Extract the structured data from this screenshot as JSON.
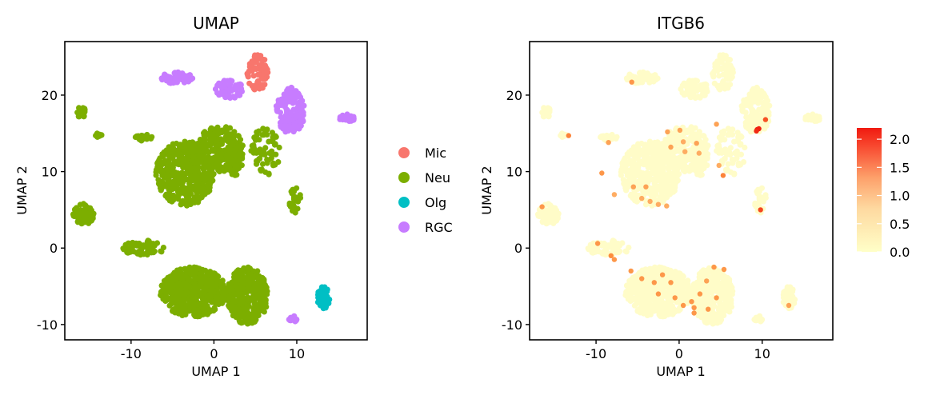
{
  "chart_data": [
    {
      "type": "scatter",
      "title": "UMAP",
      "xlabel": "UMAP 1",
      "ylabel": "UMAP 2",
      "xlim": [
        -18,
        18.5
      ],
      "ylim": [
        -12,
        27
      ],
      "xticks": [
        {
          "v": -10,
          "label": "-10"
        },
        {
          "v": 0,
          "label": "0"
        },
        {
          "v": 10,
          "label": "10"
        }
      ],
      "yticks": [
        {
          "v": -10,
          "label": "-10"
        },
        {
          "v": 0,
          "label": "0"
        },
        {
          "v": 10,
          "label": "10"
        },
        {
          "v": 20,
          "label": "20"
        }
      ],
      "legend": {
        "placement": "right",
        "entries": [
          {
            "label": "Mic",
            "color": "#F8766D"
          },
          {
            "label": "Neu",
            "color": "#7CAE00"
          },
          {
            "label": "Olg",
            "color": "#00BFC4"
          },
          {
            "label": "RGC",
            "color": "#C77CFF"
          }
        ]
      },
      "clusters": [
        {
          "group": "Neu",
          "label": "Neu upper-left mass",
          "x": [
            -7,
            0
          ],
          "y": [
            5.5,
            14
          ],
          "n": 420
        },
        {
          "group": "Neu",
          "label": "Neu upper-center mass",
          "x": [
            -2,
            3.5
          ],
          "y": [
            10,
            16
          ],
          "n": 220
        },
        {
          "group": "Neu",
          "label": "Neu upper-right lobe",
          "x": [
            1.5,
            3.5
          ],
          "y": [
            9.5,
            14
          ],
          "n": 80
        },
        {
          "group": "Neu",
          "label": "Neu lower-left mass",
          "x": [
            -6.5,
            1.5
          ],
          "y": [
            -9,
            -2.5
          ],
          "n": 430
        },
        {
          "group": "Neu",
          "label": "Neu lower-right mass",
          "x": [
            1.5,
            6.5
          ],
          "y": [
            -10,
            -2.5
          ],
          "n": 320
        },
        {
          "group": "Neu",
          "label": "Neu lower arm",
          "x": [
            -11,
            -6
          ],
          "y": [
            -1,
            1
          ],
          "n": 70
        },
        {
          "group": "Neu",
          "label": "Neu far-left cluster",
          "x": [
            -17,
            -14.5
          ],
          "y": [
            2.8,
            5.8
          ],
          "n": 60
        },
        {
          "group": "Neu",
          "label": "Neu small upper-left",
          "x": [
            -16.5,
            -15.5
          ],
          "y": [
            17,
            18.5
          ],
          "n": 20
        },
        {
          "group": "Neu",
          "label": "Neu small left",
          "x": [
            -14.5,
            -13.5
          ],
          "y": [
            14.5,
            15
          ],
          "n": 12
        },
        {
          "group": "Neu",
          "label": "Neu small top-center",
          "x": [
            -9.5,
            -7.5
          ],
          "y": [
            14,
            15
          ],
          "n": 18
        },
        {
          "group": "Neu",
          "label": "Neu mid-right islands",
          "x": [
            4.5,
            8
          ],
          "y": [
            9.5,
            16
          ],
          "n": 60
        },
        {
          "group": "Neu",
          "label": "Neu small right",
          "x": [
            9,
            10.5
          ],
          "y": [
            4.5,
            8
          ],
          "n": 25
        },
        {
          "group": "Mic",
          "label": "Mic streak",
          "x": [
            4,
            6.5
          ],
          "y": [
            20.5,
            25.5
          ],
          "n": 70
        },
        {
          "group": "RGC",
          "label": "RGC top cluster",
          "x": [
            -6.5,
            -2.5
          ],
          "y": [
            21.5,
            23
          ],
          "n": 60
        },
        {
          "group": "RGC",
          "label": "RGC center cluster",
          "x": [
            0,
            3.5
          ],
          "y": [
            19.5,
            22
          ],
          "n": 60
        },
        {
          "group": "RGC",
          "label": "RGC right cluster",
          "x": [
            7.5,
            11
          ],
          "y": [
            15,
            21
          ],
          "n": 150
        },
        {
          "group": "RGC",
          "label": "RGC far-right streak",
          "x": [
            15,
            17
          ],
          "y": [
            16.5,
            17.5
          ],
          "n": 20
        },
        {
          "group": "RGC",
          "label": "RGC small bottom",
          "x": [
            9,
            10
          ],
          "y": [
            -9.8,
            -8.8
          ],
          "n": 12
        },
        {
          "group": "Olg",
          "label": "Olg cluster",
          "x": [
            12.5,
            14
          ],
          "y": [
            -8,
            -5
          ],
          "n": 60
        }
      ]
    },
    {
      "type": "scatter",
      "title": "ITGB6",
      "xlabel": "UMAP 1",
      "ylabel": "UMAP 2",
      "xlim": [
        -18,
        18.5
      ],
      "ylim": [
        -12,
        27
      ],
      "xticks": [
        {
          "v": -10,
          "label": "-10"
        },
        {
          "v": 0,
          "label": "0"
        },
        {
          "v": 10,
          "label": "10"
        }
      ],
      "yticks": [
        {
          "v": -10,
          "label": "-10"
        },
        {
          "v": 0,
          "label": "0"
        },
        {
          "v": 10,
          "label": "10"
        },
        {
          "v": 20,
          "label": "20"
        }
      ],
      "colorbar": {
        "range": [
          0,
          2.2
        ],
        "ticks": [
          "0.0",
          "0.5",
          "1.0",
          "1.5",
          "2.0"
        ],
        "low_color": "#FFFFC8",
        "mid_color": "#FD8D3C",
        "high_color": "#F02010"
      },
      "background_color": "#FFFCC8",
      "expressing_points": [
        {
          "x": -5.7,
          "y": 21.7,
          "v": 1.0
        },
        {
          "x": -16.5,
          "y": 5.4,
          "v": 1.0
        },
        {
          "x": -13.3,
          "y": 14.7,
          "v": 1.2
        },
        {
          "x": -8.5,
          "y": 13.8,
          "v": 0.9
        },
        {
          "x": -9.3,
          "y": 9.8,
          "v": 1.0
        },
        {
          "x": -7.8,
          "y": 7.0,
          "v": 0.8
        },
        {
          "x": -5.5,
          "y": 8.0,
          "v": 0.9
        },
        {
          "x": -4.5,
          "y": 6.5,
          "v": 0.8
        },
        {
          "x": -3.5,
          "y": 6.1,
          "v": 0.8
        },
        {
          "x": -2.5,
          "y": 5.7,
          "v": 0.8
        },
        {
          "x": -1.5,
          "y": 5.5,
          "v": 0.8
        },
        {
          "x": -4.0,
          "y": 8.0,
          "v": 0.9
        },
        {
          "x": -1.4,
          "y": 15.2,
          "v": 0.9
        },
        {
          "x": 0.1,
          "y": 15.4,
          "v": 0.9
        },
        {
          "x": -1.0,
          "y": 13.2,
          "v": 0.9
        },
        {
          "x": 0.5,
          "y": 13.9,
          "v": 0.8
        },
        {
          "x": 2.1,
          "y": 13.7,
          "v": 0.9
        },
        {
          "x": 2.4,
          "y": 12.4,
          "v": 0.8
        },
        {
          "x": 0.7,
          "y": 12.6,
          "v": 0.8
        },
        {
          "x": 4.5,
          "y": 16.2,
          "v": 0.9
        },
        {
          "x": 4.8,
          "y": 10.8,
          "v": 0.8
        },
        {
          "x": 5.3,
          "y": 9.5,
          "v": 1.2
        },
        {
          "x": 9.4,
          "y": 15.5,
          "v": 2.2
        },
        {
          "x": 9.6,
          "y": 15.6,
          "v": 2.2
        },
        {
          "x": 9.3,
          "y": 15.3,
          "v": 2.1
        },
        {
          "x": 10.4,
          "y": 16.8,
          "v": 1.7
        },
        {
          "x": 9.8,
          "y": 5.0,
          "v": 1.8
        },
        {
          "x": -9.8,
          "y": 0.6,
          "v": 1.0
        },
        {
          "x": -8.2,
          "y": -1.0,
          "v": 1.1
        },
        {
          "x": -7.8,
          "y": -1.5,
          "v": 1.0
        },
        {
          "x": -5.8,
          "y": -3.0,
          "v": 1.0
        },
        {
          "x": -4.5,
          "y": -4.0,
          "v": 1.0
        },
        {
          "x": -3.0,
          "y": -4.5,
          "v": 1.0
        },
        {
          "x": -2.0,
          "y": -3.5,
          "v": 1.0
        },
        {
          "x": -1.0,
          "y": -4.5,
          "v": 1.0
        },
        {
          "x": -2.5,
          "y": -6.0,
          "v": 1.0
        },
        {
          "x": -0.5,
          "y": -6.5,
          "v": 1.0
        },
        {
          "x": 0.5,
          "y": -7.5,
          "v": 1.0
        },
        {
          "x": 1.5,
          "y": -7.0,
          "v": 1.0
        },
        {
          "x": 1.8,
          "y": -8.5,
          "v": 1.0
        },
        {
          "x": 1.8,
          "y": -7.8,
          "v": 1.0
        },
        {
          "x": 3.5,
          "y": -8.0,
          "v": 1.0
        },
        {
          "x": 4.5,
          "y": -6.5,
          "v": 1.0
        },
        {
          "x": 2.5,
          "y": -6.0,
          "v": 1.0
        },
        {
          "x": 4.2,
          "y": -2.5,
          "v": 1.0
        },
        {
          "x": 5.4,
          "y": -2.8,
          "v": 1.0
        },
        {
          "x": 3.3,
          "y": -4.3,
          "v": 0.9
        },
        {
          "x": 13.2,
          "y": -7.5,
          "v": 0.9
        }
      ]
    }
  ]
}
